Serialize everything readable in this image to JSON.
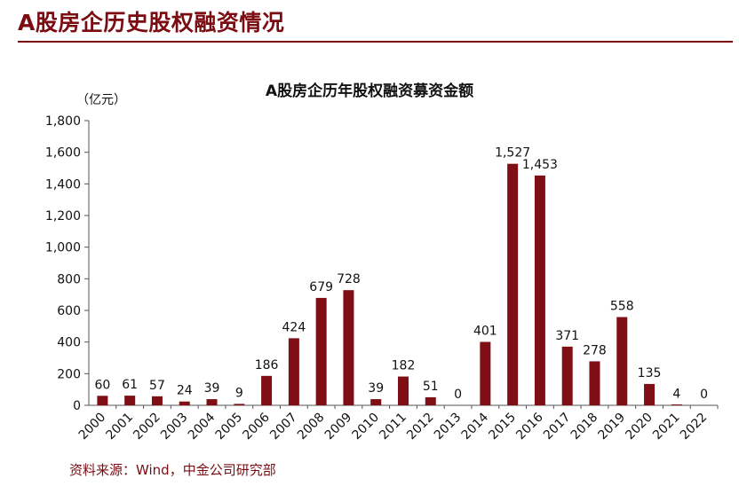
{
  "page_title": "A股房企历史股权融资情况",
  "source_note": "资料来源：Wind，中金公司研究部",
  "colors": {
    "accent": "#7a0c12",
    "bar": "#7f0f14"
  },
  "chart_data": {
    "type": "bar",
    "title": "A股房企历年股权融资募资金额",
    "y_unit": "（亿元）",
    "xlabel": "",
    "ylabel": "",
    "ylim": [
      0,
      1800
    ],
    "y_ticks": [
      0,
      200,
      400,
      600,
      800,
      1000,
      1200,
      1400,
      1600,
      1800
    ],
    "y_tick_labels": [
      "0",
      "200",
      "400",
      "600",
      "800",
      "1,000",
      "1,200",
      "1,400",
      "1,600",
      "1,800"
    ],
    "grid": false,
    "categories": [
      "2000",
      "2001",
      "2002",
      "2003",
      "2004",
      "2005",
      "2006",
      "2007",
      "2008",
      "2009",
      "2010",
      "2011",
      "2012",
      "2013",
      "2014",
      "2015",
      "2016",
      "2017",
      "2018",
      "2019",
      "2020",
      "2021",
      "2022"
    ],
    "values": [
      60,
      61,
      57,
      24,
      39,
      9,
      186,
      424,
      679,
      728,
      39,
      182,
      51,
      0,
      401,
      1527,
      1453,
      371,
      278,
      558,
      135,
      4,
      0
    ],
    "value_labels": [
      "60",
      "61",
      "57",
      "24",
      "39",
      "9",
      "186",
      "424",
      "679",
      "728",
      "39",
      "182",
      "51",
      "0",
      "401",
      "1,527",
      "1,453",
      "371",
      "278",
      "558",
      "135",
      "4",
      "0"
    ]
  }
}
